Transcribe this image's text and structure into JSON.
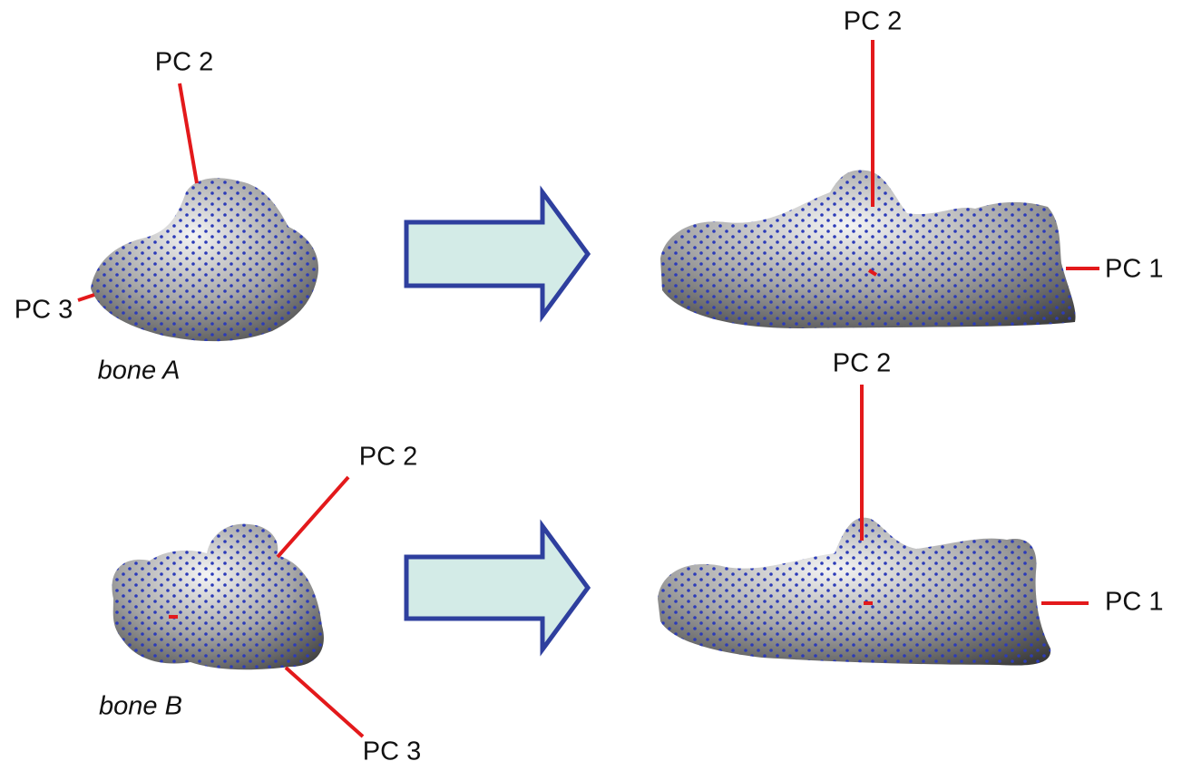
{
  "panels": [
    {
      "bone_label": "bone A",
      "before_axes": [
        "PC 2",
        "PC 3"
      ],
      "after_axes": [
        "PC 2",
        "PC 1"
      ]
    },
    {
      "bone_label": "bone B",
      "before_axes": [
        "PC 2",
        "PC 3"
      ],
      "after_axes": [
        "PC 2",
        "PC 1"
      ]
    }
  ]
}
